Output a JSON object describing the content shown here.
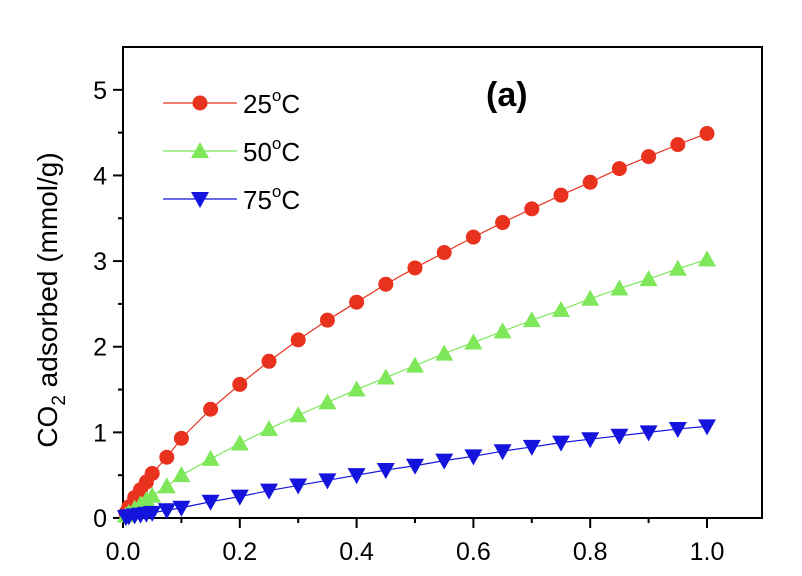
{
  "chart_data": {
    "type": "line",
    "title": "",
    "panel_label": "(a)",
    "xlabel": "",
    "ylabel": "CO2 adsorbed (mmol/g)",
    "ylabel_parts": {
      "pre": "CO",
      "sub": "2",
      "post": " adsorbed (mmol/g)"
    },
    "xlim": [
      0.0,
      1.0
    ],
    "ylim": [
      0,
      5
    ],
    "x_ticks": [
      "0.0",
      "0.2",
      "0.4",
      "0.6",
      "0.8",
      "1.0"
    ],
    "y_ticks": [
      "0",
      "1",
      "2",
      "3",
      "4",
      "5"
    ],
    "grid": false,
    "legend_position": "top-left",
    "series": [
      {
        "name": "25oC",
        "label_parts": {
          "num": "25",
          "sup": "o",
          "unit": "C"
        },
        "color": "#e8321e",
        "marker": "circle",
        "x": [
          0.005,
          0.01,
          0.02,
          0.03,
          0.04,
          0.05,
          0.075,
          0.1,
          0.15,
          0.2,
          0.25,
          0.3,
          0.35,
          0.4,
          0.45,
          0.5,
          0.55,
          0.6,
          0.65,
          0.7,
          0.75,
          0.8,
          0.85,
          0.9,
          0.95,
          1.0
        ],
        "y": [
          0.06,
          0.13,
          0.24,
          0.33,
          0.42,
          0.52,
          0.71,
          0.93,
          1.27,
          1.56,
          1.83,
          2.08,
          2.31,
          2.52,
          2.73,
          2.92,
          3.1,
          3.28,
          3.45,
          3.61,
          3.77,
          3.92,
          4.08,
          4.22,
          4.36,
          4.49
        ]
      },
      {
        "name": "50oC",
        "label_parts": {
          "num": "50",
          "sup": "o",
          "unit": "C"
        },
        "color": "#7ee85a",
        "marker": "triangle-up",
        "x": [
          0.005,
          0.01,
          0.02,
          0.03,
          0.04,
          0.05,
          0.075,
          0.1,
          0.15,
          0.2,
          0.25,
          0.3,
          0.35,
          0.4,
          0.45,
          0.5,
          0.55,
          0.6,
          0.65,
          0.7,
          0.75,
          0.8,
          0.85,
          0.9,
          0.95,
          1.0
        ],
        "y": [
          0.03,
          0.06,
          0.11,
          0.16,
          0.21,
          0.26,
          0.37,
          0.5,
          0.69,
          0.87,
          1.04,
          1.2,
          1.35,
          1.5,
          1.64,
          1.78,
          1.92,
          2.05,
          2.18,
          2.31,
          2.43,
          2.56,
          2.68,
          2.79,
          2.91,
          3.02
        ]
      },
      {
        "name": "75oC",
        "label_parts": {
          "num": "75",
          "sup": "o",
          "unit": "C"
        },
        "color": "#1414dc",
        "marker": "triangle-down",
        "x": [
          0.005,
          0.01,
          0.02,
          0.03,
          0.04,
          0.05,
          0.075,
          0.1,
          0.15,
          0.2,
          0.25,
          0.3,
          0.35,
          0.4,
          0.45,
          0.5,
          0.55,
          0.6,
          0.65,
          0.7,
          0.75,
          0.8,
          0.85,
          0.9,
          0.95,
          1.0
        ],
        "y": [
          0.01,
          0.02,
          0.03,
          0.04,
          0.05,
          0.06,
          0.09,
          0.12,
          0.19,
          0.25,
          0.32,
          0.38,
          0.44,
          0.5,
          0.56,
          0.61,
          0.67,
          0.72,
          0.78,
          0.83,
          0.88,
          0.92,
          0.96,
          1.0,
          1.04,
          1.07
        ]
      }
    ]
  }
}
